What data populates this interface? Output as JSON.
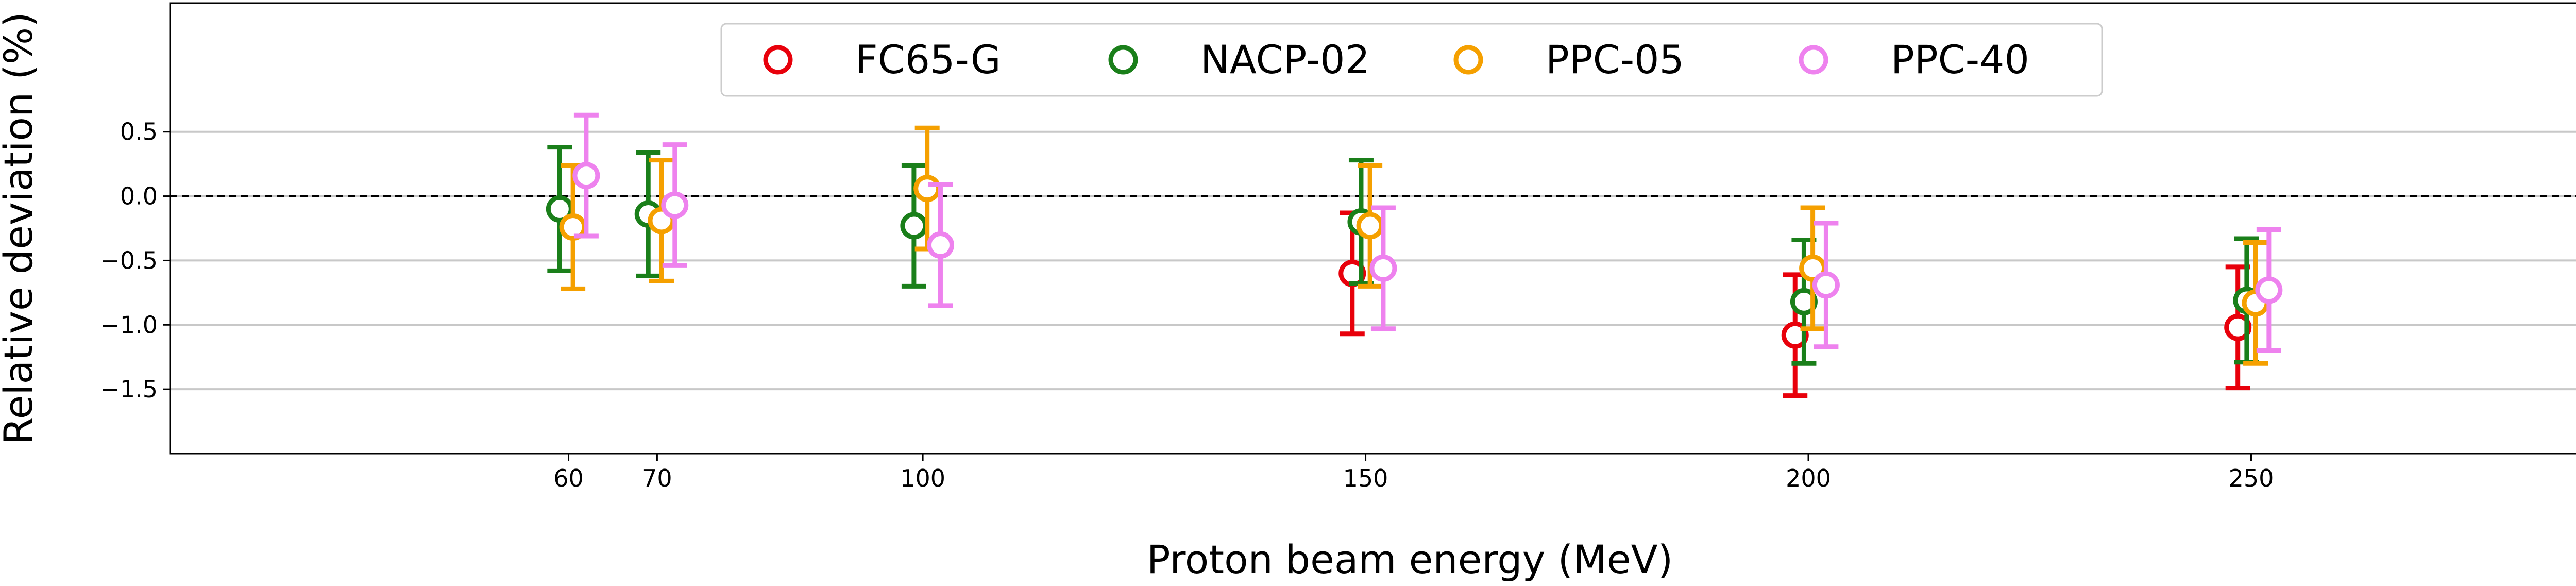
{
  "chart_data": {
    "type": "scatter",
    "title": "",
    "xlabel": "Proton beam energy (MeV)",
    "ylabel": "Relative deviation (%)",
    "xlim": [
      15,
      295
    ],
    "ylim": [
      -2.0,
      1.5
    ],
    "xticks": [
      60,
      70,
      100,
      150,
      200,
      250
    ],
    "xtick_labels": [
      "60",
      "70",
      "100",
      "150",
      "200",
      "250"
    ],
    "yticks": [
      0.5,
      0.0,
      -0.5,
      -1.0,
      -1.5
    ],
    "ytick_labels": [
      "0.5",
      "0.0",
      "−0.5",
      "−1.0",
      "−1.5"
    ],
    "grid": "horizontal",
    "reference_line": {
      "y": 0.0,
      "style": "dashed",
      "color": "#000000"
    },
    "legend": {
      "placement": "top-center",
      "columns": 4
    },
    "marker": "open-circle",
    "series": [
      {
        "name": "FC65-G",
        "color": "#e8000b",
        "x": [
          148.5,
          198.5,
          248.5
        ],
        "y": [
          -0.6,
          -1.08,
          -1.02
        ],
        "err": [
          0.47,
          0.47,
          0.47
        ]
      },
      {
        "name": "NACP-02",
        "color": "#1a7f1a",
        "x": [
          59.0,
          69.0,
          99.0,
          149.5,
          199.5,
          249.5
        ],
        "y": [
          -0.1,
          -0.14,
          -0.23,
          -0.2,
          -0.82,
          -0.81
        ],
        "err": [
          0.48,
          0.48,
          0.47,
          0.48,
          0.48,
          0.48
        ]
      },
      {
        "name": "PPC-05",
        "color": "#f5a000",
        "x": [
          60.5,
          70.5,
          100.5,
          150.5,
          200.5,
          250.5
        ],
        "y": [
          -0.24,
          -0.19,
          0.06,
          -0.23,
          -0.56,
          -0.83
        ],
        "err": [
          0.48,
          0.47,
          0.47,
          0.47,
          0.47,
          0.47
        ]
      },
      {
        "name": "PPC-40",
        "color": "#ee82ee",
        "x": [
          62.0,
          72.0,
          102.0,
          152.0,
          202.0,
          252.0
        ],
        "y": [
          0.16,
          -0.07,
          -0.38,
          -0.56,
          -0.69,
          -0.73
        ],
        "err": [
          0.47,
          0.47,
          0.47,
          0.47,
          0.48,
          0.47
        ]
      }
    ]
  }
}
